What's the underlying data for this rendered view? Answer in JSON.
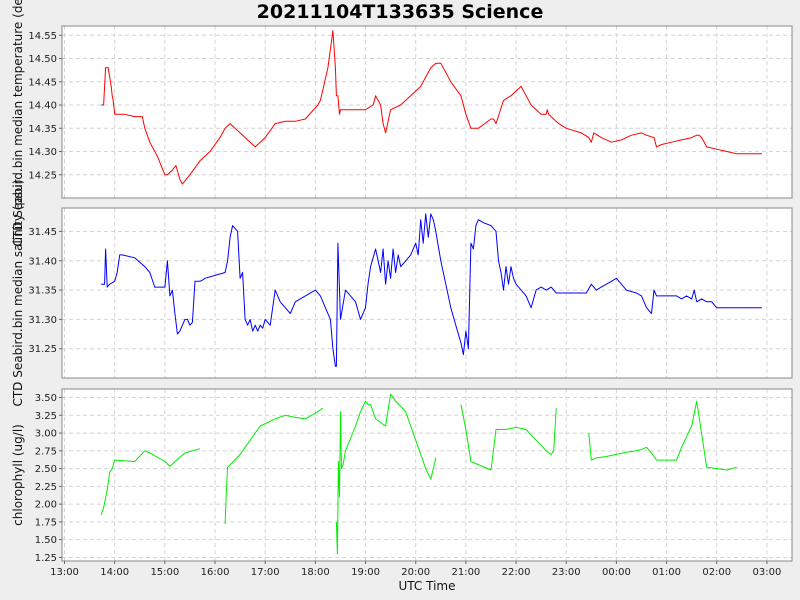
{
  "title": "20211104T133635 Science",
  "chart_data": [
    {
      "type": "line",
      "ylabel": "CTD Seabird.bin median temperature (degC)",
      "ylim": [
        14.2,
        14.57
      ],
      "yticks": [
        14.25,
        14.3,
        14.35,
        14.4,
        14.45,
        14.5,
        14.55
      ],
      "yfmt": 2,
      "grid": true,
      "series": [
        {
          "color": "#ff0000",
          "x": [
            13.73,
            13.78,
            13.82,
            13.87,
            13.93,
            13.95,
            13.97,
            14.0,
            14.2,
            14.4,
            14.55,
            14.6,
            14.7,
            14.85,
            15.0,
            15.05,
            15.15,
            15.22,
            15.3,
            15.35,
            15.5,
            15.7,
            15.9,
            16.1,
            16.2,
            16.3,
            16.5,
            16.7,
            16.8,
            17.0,
            17.2,
            17.4,
            17.6,
            17.8,
            18.05,
            18.1,
            18.25,
            18.35,
            18.4,
            18.42,
            18.45,
            18.48,
            18.5,
            18.52,
            18.55,
            18.6,
            18.8,
            19.0,
            19.15,
            19.2,
            19.3,
            19.35,
            19.4,
            19.5,
            19.7,
            19.9,
            20.1,
            20.2,
            20.3,
            20.4,
            20.5,
            20.7,
            20.9,
            21.0,
            21.1,
            21.25,
            21.5,
            21.55,
            21.6,
            21.75,
            21.9,
            22.1,
            22.2,
            22.3,
            22.5,
            22.6,
            22.62,
            22.65,
            22.75,
            22.85,
            23.0,
            23.3,
            23.45,
            23.5,
            23.55,
            23.7,
            23.9,
            24.1,
            24.3,
            24.5,
            24.6,
            24.75,
            24.8,
            24.9,
            25.1,
            25.3,
            25.5,
            25.6,
            25.65,
            25.7,
            25.8,
            26.0,
            26.2,
            26.4,
            26.9
          ],
          "y": [
            14.4,
            14.4,
            14.48,
            14.48,
            14.44,
            14.42,
            14.41,
            14.38,
            14.38,
            14.375,
            14.375,
            14.35,
            14.32,
            14.29,
            14.25,
            14.25,
            14.26,
            14.27,
            14.24,
            14.23,
            14.25,
            14.28,
            14.3,
            14.33,
            14.35,
            14.36,
            14.34,
            14.32,
            14.31,
            14.33,
            14.36,
            14.365,
            14.365,
            14.37,
            14.4,
            14.41,
            14.48,
            14.56,
            14.48,
            14.42,
            14.42,
            14.38,
            14.39,
            14.39,
            14.39,
            14.39,
            14.39,
            14.39,
            14.4,
            14.42,
            14.4,
            14.36,
            14.34,
            14.39,
            14.4,
            14.42,
            14.44,
            14.46,
            14.48,
            14.49,
            14.49,
            14.45,
            14.42,
            14.38,
            14.35,
            14.35,
            14.37,
            14.37,
            14.36,
            14.41,
            14.42,
            14.44,
            14.42,
            14.4,
            14.38,
            14.38,
            14.39,
            14.38,
            14.37,
            14.36,
            14.35,
            14.34,
            14.33,
            14.32,
            14.34,
            14.33,
            14.32,
            14.325,
            14.335,
            14.34,
            14.335,
            14.33,
            14.31,
            14.315,
            14.32,
            14.325,
            14.33,
            14.335,
            14.335,
            14.33,
            14.31,
            14.305,
            14.3,
            14.295,
            14.295
          ]
        }
      ]
    },
    {
      "type": "line",
      "ylabel": "CTD Seabird.bin median salinity (psu)",
      "ylim": [
        31.2,
        31.49
      ],
      "yticks": [
        31.25,
        31.3,
        31.35,
        31.4,
        31.45
      ],
      "yfmt": 2,
      "grid": true,
      "series": [
        {
          "color": "#0000ff",
          "x": [
            13.73,
            13.8,
            13.82,
            13.85,
            13.9,
            14.0,
            14.05,
            14.1,
            14.15,
            14.4,
            14.6,
            14.7,
            14.8,
            14.9,
            15.0,
            15.05,
            15.1,
            15.15,
            15.2,
            15.25,
            15.3,
            15.4,
            15.45,
            15.5,
            15.55,
            15.6,
            15.65,
            15.7,
            15.75,
            15.8,
            16.0,
            16.2,
            16.25,
            16.3,
            16.35,
            16.45,
            16.5,
            16.55,
            16.6,
            16.65,
            16.7,
            16.75,
            16.8,
            16.85,
            16.9,
            16.95,
            17.0,
            17.1,
            17.2,
            17.3,
            17.4,
            17.5,
            17.6,
            17.8,
            18.0,
            18.1,
            18.2,
            18.3,
            18.35,
            18.4,
            18.42,
            18.45,
            18.5,
            18.6,
            18.7,
            18.8,
            18.9,
            19.0,
            19.05,
            19.1,
            19.2,
            19.3,
            19.35,
            19.4,
            19.45,
            19.5,
            19.55,
            19.6,
            19.65,
            19.7,
            19.8,
            19.9,
            20.0,
            20.05,
            20.1,
            20.15,
            20.2,
            20.25,
            20.3,
            20.35,
            20.4,
            20.5,
            20.6,
            20.7,
            20.8,
            20.9,
            20.95,
            21.0,
            21.05,
            21.1,
            21.15,
            21.2,
            21.25,
            21.35,
            21.5,
            21.6,
            21.65,
            21.7,
            21.75,
            21.8,
            21.85,
            21.9,
            21.95,
            22.0,
            22.1,
            22.2,
            22.3,
            22.4,
            22.5,
            22.6,
            22.7,
            22.8,
            22.9,
            23.0,
            23.2,
            23.4,
            23.5,
            23.6,
            23.7,
            23.8,
            23.9,
            24.0,
            24.1,
            24.2,
            24.4,
            24.5,
            24.6,
            24.7,
            24.75,
            24.8,
            24.9,
            25.0,
            25.1,
            25.2,
            25.3,
            25.4,
            25.5,
            25.55,
            25.6,
            25.7,
            25.8,
            25.9,
            26.0,
            26.2,
            26.5,
            26.9
          ],
          "y": [
            31.36,
            31.36,
            31.42,
            31.355,
            31.36,
            31.365,
            31.38,
            31.41,
            31.41,
            31.405,
            31.39,
            31.38,
            31.355,
            31.355,
            31.355,
            31.4,
            31.34,
            31.35,
            31.31,
            31.275,
            31.28,
            31.3,
            31.3,
            31.29,
            31.295,
            31.365,
            31.365,
            31.365,
            31.367,
            31.37,
            31.375,
            31.38,
            31.4,
            31.44,
            31.46,
            31.45,
            31.37,
            31.38,
            31.3,
            31.29,
            31.3,
            31.28,
            31.29,
            31.28,
            31.29,
            31.285,
            31.3,
            31.29,
            31.35,
            31.33,
            31.32,
            31.31,
            31.33,
            31.34,
            31.35,
            31.34,
            31.32,
            31.3,
            31.25,
            31.22,
            31.22,
            31.43,
            31.3,
            31.35,
            31.34,
            31.33,
            31.3,
            31.32,
            31.36,
            31.39,
            31.42,
            31.38,
            31.42,
            31.36,
            31.4,
            31.37,
            31.42,
            31.38,
            31.41,
            31.39,
            31.4,
            31.41,
            31.43,
            31.41,
            31.47,
            31.43,
            31.48,
            31.44,
            31.48,
            31.47,
            31.45,
            31.4,
            31.36,
            31.32,
            31.29,
            31.26,
            31.24,
            31.28,
            31.25,
            31.43,
            31.42,
            31.46,
            31.47,
            31.465,
            31.46,
            31.45,
            31.4,
            31.38,
            31.35,
            31.39,
            31.36,
            31.39,
            31.37,
            31.36,
            31.35,
            31.34,
            31.32,
            31.35,
            31.355,
            31.35,
            31.355,
            31.345,
            31.345,
            31.345,
            31.345,
            31.345,
            31.36,
            31.35,
            31.355,
            31.36,
            31.365,
            31.37,
            31.36,
            31.35,
            31.345,
            31.34,
            31.32,
            31.31,
            31.35,
            31.34,
            31.34,
            31.34,
            31.34,
            31.34,
            31.335,
            31.34,
            31.335,
            31.35,
            31.33,
            31.335,
            31.33,
            31.33,
            31.32,
            31.32,
            31.32,
            31.32
          ]
        }
      ]
    },
    {
      "type": "line",
      "ylabel": "chlorophyll (ug/l)",
      "ylim": [
        1.2,
        3.62
      ],
      "yticks": [
        1.25,
        1.5,
        1.75,
        2.0,
        2.25,
        2.5,
        2.75,
        3.0,
        3.25,
        3.5
      ],
      "yfmt": 2,
      "grid": true,
      "series": [
        {
          "color": "#00ee00",
          "segments": [
            {
              "x": [
                13.73,
                13.78,
                13.85,
                13.9,
                13.95,
                14.0,
                14.4,
                14.6,
                14.7,
                14.8,
                15.0,
                15.1,
                15.2,
                15.4,
                15.7
              ],
              "y": [
                1.85,
                1.95,
                2.2,
                2.45,
                2.5,
                2.62,
                2.6,
                2.75,
                2.72,
                2.68,
                2.6,
                2.53,
                2.6,
                2.72,
                2.78
              ]
            },
            {
              "x": [
                16.2,
                16.22,
                16.25,
                16.3,
                16.5,
                16.7,
                16.9,
                17.2,
                17.4,
                17.6,
                17.8,
                18.0,
                18.15
              ],
              "y": [
                1.72,
                2.1,
                2.52,
                2.55,
                2.7,
                2.9,
                3.1,
                3.2,
                3.25,
                3.22,
                3.2,
                3.28,
                3.35
              ]
            },
            {
              "x": [
                18.42,
                18.44,
                18.46,
                18.48,
                18.5,
                18.52,
                18.55,
                18.6,
                18.8,
                18.9,
                19.0,
                19.05,
                19.1,
                19.2,
                19.4,
                19.5,
                19.6,
                19.8,
                19.9,
                20.0,
                20.1,
                20.2,
                20.3,
                20.4
              ],
              "y": [
                1.75,
                1.3,
                2.6,
                2.1,
                3.3,
                2.5,
                2.55,
                2.75,
                3.1,
                3.3,
                3.45,
                3.4,
                3.4,
                3.2,
                3.1,
                3.55,
                3.45,
                3.3,
                3.1,
                2.9,
                2.7,
                2.5,
                2.35,
                2.65
              ]
            },
            {
              "x": [
                20.9,
                21.0,
                21.1,
                21.5,
                21.6,
                21.8,
                22.0,
                22.2,
                22.4,
                22.6,
                22.65,
                22.7,
                22.75,
                22.8
              ],
              "y": [
                3.4,
                3.05,
                2.6,
                2.48,
                3.05,
                3.05,
                3.08,
                3.05,
                2.9,
                2.75,
                2.72,
                2.7,
                2.75,
                3.35
              ]
            },
            {
              "x": [
                23.45,
                23.5,
                23.6,
                23.8,
                24.0,
                24.2,
                24.4,
                24.5,
                24.6,
                24.7,
                24.8,
                25.0,
                25.2,
                25.3,
                25.4,
                25.5,
                25.6,
                25.8,
                26.0,
                26.2,
                26.4
              ],
              "y": [
                3.0,
                2.62,
                2.65,
                2.67,
                2.7,
                2.73,
                2.75,
                2.77,
                2.8,
                2.72,
                2.62,
                2.62,
                2.62,
                2.8,
                2.95,
                3.1,
                3.45,
                2.52,
                2.5,
                2.48,
                2.52
              ]
            }
          ]
        }
      ]
    }
  ],
  "x_axis": {
    "label": "UTC Time",
    "xlim": [
      12.95,
      27.5
    ],
    "ticks": [
      {
        "v": 13,
        "label": "13:00"
      },
      {
        "v": 14,
        "label": "14:00"
      },
      {
        "v": 15,
        "label": "15:00"
      },
      {
        "v": 16,
        "label": "16:00"
      },
      {
        "v": 17,
        "label": "17:00"
      },
      {
        "v": 18,
        "label": "18:00"
      },
      {
        "v": 19,
        "label": "19:00"
      },
      {
        "v": 20,
        "label": "20:00"
      },
      {
        "v": 21,
        "label": "21:00"
      },
      {
        "v": 22,
        "label": "22:00"
      },
      {
        "v": 23,
        "label": "23:00"
      },
      {
        "v": 24,
        "label": "00:00"
      },
      {
        "v": 25,
        "label": "01:00"
      },
      {
        "v": 26,
        "label": "02:00"
      },
      {
        "v": 27,
        "label": "03:00"
      }
    ]
  }
}
